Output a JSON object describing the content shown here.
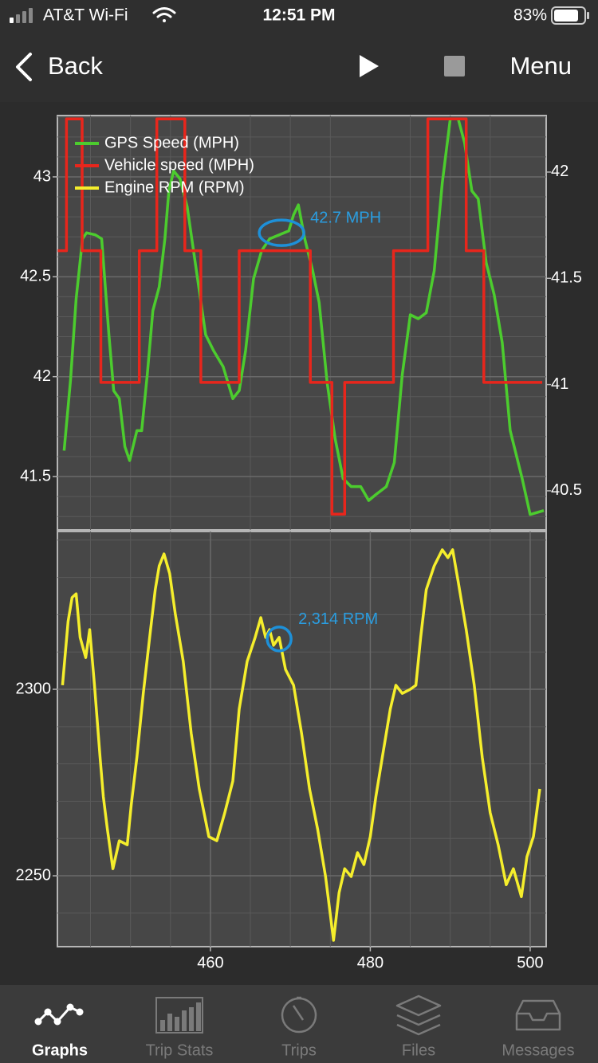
{
  "status_bar": {
    "carrier": "AT&T Wi-Fi",
    "time": "12:51 PM",
    "battery": "83%"
  },
  "nav": {
    "back": "Back",
    "menu": "Menu"
  },
  "chart_data": [
    {
      "type": "line",
      "xlim": [
        440.86,
        502.0
      ],
      "ylim": [
        41.233,
        43.307
      ],
      "yticks": [
        41.5,
        42,
        42.5,
        43
      ],
      "y2lim": [
        40.316,
        42.266
      ],
      "y2ticks": [
        40.5,
        41,
        41.5,
        42
      ],
      "grid": true,
      "legend": "top-left",
      "series": [
        {
          "name": "GPS Speed (MPH)",
          "color": "#4ccc2e",
          "x": [
            441.7,
            442.5,
            443.2,
            444.0,
            444.5,
            445.6,
            446.4,
            447.3,
            447.9,
            448.6,
            449.3,
            449.9,
            450.8,
            451.4,
            452.1,
            452.8,
            453.6,
            454.3,
            454.8,
            455.4,
            456.2,
            457.1,
            458.1,
            459.4,
            460.4,
            461.6,
            462.8,
            463.6,
            464.4,
            465.4,
            466.4,
            467.4,
            468.6,
            469.8,
            470.4,
            471.0,
            471.8,
            472.8,
            473.6,
            474.6,
            475.6,
            476.6,
            477.6,
            478.8,
            479.8,
            480.7,
            482.0,
            483.0,
            484.0,
            485.0,
            486.0,
            487.0,
            488.0,
            489.0,
            490.0,
            491.0,
            491.8,
            492.7,
            493.5,
            494.5,
            495.5,
            496.5,
            497.5,
            499.0,
            500.0,
            501.7
          ],
          "values": [
            41.63,
            41.98,
            42.39,
            42.69,
            42.72,
            42.71,
            42.69,
            42.21,
            41.93,
            41.89,
            41.65,
            41.58,
            41.73,
            41.73,
            42.01,
            42.33,
            42.45,
            42.69,
            42.93,
            43.03,
            42.99,
            42.85,
            42.57,
            42.21,
            42.13,
            42.05,
            41.89,
            41.93,
            42.13,
            42.49,
            42.63,
            42.69,
            42.71,
            42.73,
            42.81,
            42.86,
            42.69,
            42.53,
            42.37,
            41.97,
            41.69,
            41.49,
            41.45,
            41.45,
            41.38,
            41.41,
            41.45,
            41.57,
            42.01,
            42.31,
            42.29,
            42.32,
            42.53,
            42.97,
            43.29,
            43.29,
            43.17,
            42.93,
            42.89,
            42.57,
            42.41,
            42.17,
            41.73,
            41.49,
            41.31,
            41.33
          ]
        },
        {
          "name": "Vehicle speed (MPH)",
          "color": "#e8261c",
          "axis": "y2",
          "x": [
            440.9,
            442.0,
            442.0,
            443.95,
            443.95,
            446.3,
            446.3,
            451.1,
            451.1,
            453.3,
            453.3,
            456.8,
            456.8,
            458.8,
            458.8,
            463.6,
            463.6,
            472.5,
            472.5,
            475.2,
            475.2,
            476.8,
            476.8,
            482.9,
            482.9,
            487.2,
            487.2,
            492.0,
            492.0,
            494.2,
            494.2,
            501.5
          ],
          "values": [
            41.63,
            41.63,
            42.25,
            42.25,
            41.63,
            41.63,
            41.01,
            41.01,
            41.63,
            41.63,
            42.25,
            42.25,
            41.63,
            41.63,
            41.01,
            41.01,
            41.63,
            41.63,
            41.01,
            41.01,
            40.39,
            40.39,
            41.01,
            41.01,
            41.63,
            41.63,
            42.25,
            42.25,
            41.63,
            41.63,
            41.01,
            41.01
          ]
        }
      ],
      "annotations": [
        {
          "text": "42.7 MPH",
          "x": 468.9,
          "y": 42.72
        }
      ]
    },
    {
      "type": "line",
      "xlim": [
        440.86,
        502.0
      ],
      "ylim": [
        2231.0,
        2342.3
      ],
      "yticks": [
        2250,
        2300
      ],
      "xticks": [
        460,
        480,
        500
      ],
      "grid": true,
      "series": [
        {
          "name": "Engine RPM (RPM)",
          "color": "#f5ee2c",
          "x": [
            441.5,
            442.2,
            442.7,
            443.2,
            443.7,
            444.4,
            444.9,
            445.5,
            446.2,
            446.6,
            447.1,
            447.8,
            448.6,
            449.6,
            450.1,
            450.8,
            451.6,
            452.4,
            453.1,
            453.6,
            454.2,
            454.9,
            455.6,
            456.6,
            457.6,
            458.6,
            459.8,
            460.8,
            461.8,
            462.8,
            463.6,
            464.6,
            465.6,
            466.3,
            466.9,
            467.4,
            467.9,
            468.6,
            469.4,
            470.4,
            471.4,
            472.4,
            473.4,
            474.4,
            475.4,
            476.1,
            476.8,
            477.6,
            478.4,
            479.2,
            480.0,
            480.7,
            481.5,
            482.5,
            483.2,
            484.0,
            485.0,
            485.7,
            486.3,
            487.0,
            488.0,
            489.0,
            489.7,
            490.3,
            491.0,
            492.0,
            493.0,
            494.0,
            495.0,
            496.0,
            497.0,
            497.9,
            498.9,
            499.6,
            500.4,
            501.2
          ],
          "values": [
            2301.1,
            2318.2,
            2324.6,
            2325.6,
            2313.9,
            2308.5,
            2316.0,
            2301.1,
            2281.8,
            2271.2,
            2262.6,
            2251.9,
            2259.4,
            2258.3,
            2269.0,
            2281.8,
            2298.9,
            2313.9,
            2326.7,
            2333.1,
            2336.3,
            2331.0,
            2320.3,
            2307.5,
            2288.2,
            2273.3,
            2260.5,
            2259.4,
            2266.9,
            2275.4,
            2294.7,
            2307.5,
            2313.9,
            2319.2,
            2313.9,
            2316.0,
            2311.8,
            2313.9,
            2305.3,
            2301.1,
            2288.2,
            2273.3,
            2262.6,
            2249.8,
            2232.7,
            2245.5,
            2251.9,
            2249.8,
            2256.2,
            2253.0,
            2260.5,
            2271.2,
            2281.8,
            2294.7,
            2301.1,
            2298.9,
            2300.0,
            2301.1,
            2313.9,
            2326.7,
            2333.1,
            2337.4,
            2335.3,
            2337.4,
            2328.8,
            2316.0,
            2301.1,
            2281.8,
            2266.9,
            2258.3,
            2247.6,
            2251.9,
            2244.4,
            2255.1,
            2260.5,
            2273.3
          ]
        }
      ],
      "annotations": [
        {
          "text": "2,314 RPM",
          "x": 468.6,
          "y": 2313.5
        }
      ]
    }
  ],
  "tabs": [
    "Graphs",
    "Trip Stats",
    "Trips",
    "Files",
    "Messages"
  ]
}
